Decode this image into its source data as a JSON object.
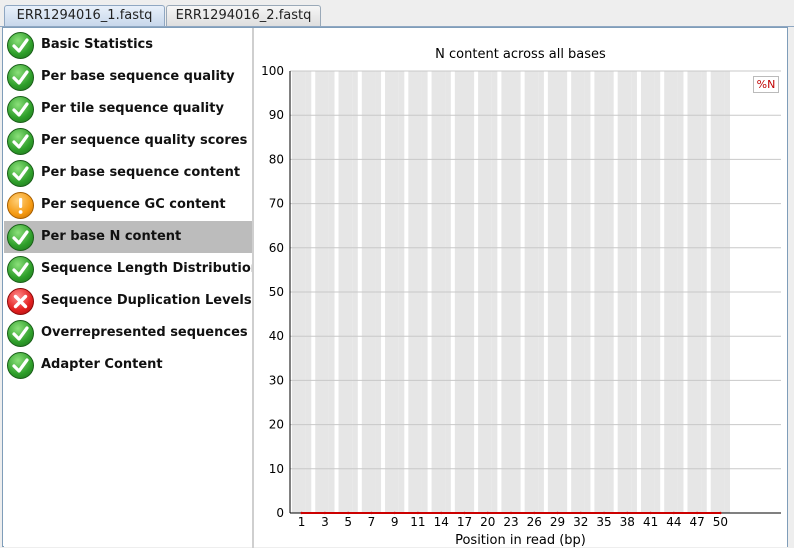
{
  "tabs": [
    {
      "label": "ERR1294016_1.fastq",
      "active": true
    },
    {
      "label": "ERR1294016_2.fastq",
      "active": false
    }
  ],
  "modules": [
    {
      "label": "Basic Statistics",
      "status": "pass"
    },
    {
      "label": "Per base sequence quality",
      "status": "pass"
    },
    {
      "label": "Per tile sequence quality",
      "status": "pass"
    },
    {
      "label": "Per sequence quality scores",
      "status": "pass"
    },
    {
      "label": "Per base sequence content",
      "status": "pass"
    },
    {
      "label": "Per sequence GC content",
      "status": "warn"
    },
    {
      "label": "Per base N content",
      "status": "pass",
      "selected": true
    },
    {
      "label": "Sequence Length Distribution",
      "status": "pass"
    },
    {
      "label": "Sequence Duplication Levels",
      "status": "fail"
    },
    {
      "label": "Overrepresented sequences",
      "status": "pass"
    },
    {
      "label": "Adapter Content",
      "status": "pass"
    }
  ],
  "chart_data": {
    "type": "line",
    "title": "N content across all bases",
    "xlabel": "Position in read (bp)",
    "ylabel": "",
    "ylim": [
      0,
      100
    ],
    "yticks": [
      0,
      10,
      20,
      30,
      40,
      50,
      60,
      70,
      80,
      90,
      100
    ],
    "categories": [
      "1",
      "3",
      "5",
      "7",
      "9",
      "11",
      "14",
      "17",
      "20",
      "23",
      "26",
      "29",
      "32",
      "35",
      "38",
      "41",
      "44",
      "47",
      "50"
    ],
    "series": [
      {
        "name": "%N",
        "color": "#cc0000",
        "values": [
          0,
          0,
          0,
          0,
          0,
          0,
          0,
          0,
          0,
          0,
          0,
          0,
          0,
          0,
          0,
          0,
          0,
          0,
          0
        ]
      }
    ],
    "grid": true,
    "alternating_bands": true,
    "legend_position": "top-right"
  },
  "colors": {
    "band": "#e6e6e6",
    "gridline": "#c8c8c8",
    "series_line": "#cc0000"
  }
}
